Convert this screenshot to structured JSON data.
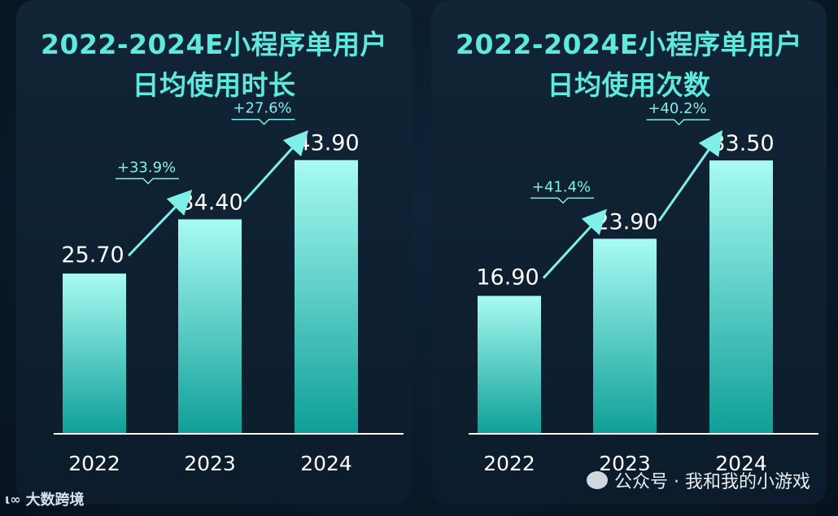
{
  "chart_data": [
    {
      "type": "bar",
      "title_line1": "2022-2024E小程序单用户",
      "title_line2": "日均使用时长",
      "categories": [
        "2022",
        "2023",
        "2024"
      ],
      "values": [
        25.7,
        34.4,
        43.9
      ],
      "value_labels": [
        "25.70",
        "34.40",
        "43.90"
      ],
      "growth_labels": [
        "+33.9%",
        "+27.6%"
      ],
      "ylim": [
        0,
        50
      ],
      "grid": false,
      "bar_color_top": "#a8fbf3",
      "bar_color_bottom": "#0e9f98"
    },
    {
      "type": "bar",
      "title_line1": "2022-2024E小程序单用户",
      "title_line2": "日均使用次数",
      "categories": [
        "2022",
        "2023",
        "2024"
      ],
      "values": [
        16.9,
        23.9,
        33.5
      ],
      "value_labels": [
        "16.90",
        "23.90",
        "33.50"
      ],
      "growth_labels": [
        "+41.4%",
        "+40.2%"
      ],
      "ylim": [
        0,
        38.2
      ],
      "grid": false,
      "bar_color_top": "#a8fbf3",
      "bar_color_bottom": "#0e9f98"
    }
  ],
  "watermark": {
    "text": "公众号 · 我和我的小游戏",
    "icon": "wechat-icon"
  },
  "brand": {
    "text": "大数跨境",
    "icon": "brand-logo-icon"
  },
  "colors": {
    "title": "#5fe8dc",
    "background": "#0a1a2a",
    "panel": "#112536"
  }
}
